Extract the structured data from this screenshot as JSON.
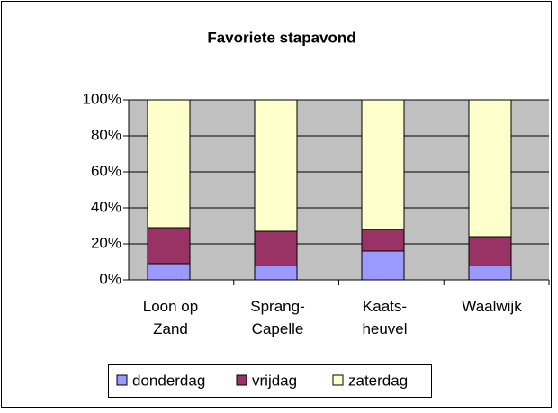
{
  "chart_data": {
    "type": "stacked_bar_percent",
    "title": "Favoriete stapavond",
    "categories": [
      "Loon op Zand",
      "Sprang-Capelle",
      "Kaats-heuvel",
      "Waalwijk"
    ],
    "series": [
      {
        "name": "donderdag",
        "color": "#9999ff",
        "values": [
          9,
          8,
          16,
          8
        ]
      },
      {
        "name": "vrijdag",
        "color": "#993366",
        "values": [
          20,
          19,
          12,
          16
        ]
      },
      {
        "name": "zaterdag",
        "color": "#ffffcc",
        "values": [
          71,
          73,
          72,
          76
        ]
      }
    ],
    "ylim": [
      0,
      100
    ],
    "yticks": [
      {
        "value": 0,
        "label": "0%"
      },
      {
        "value": 20,
        "label": "20%"
      },
      {
        "value": 40,
        "label": "40%"
      },
      {
        "value": 60,
        "label": "60%"
      },
      {
        "value": 80,
        "label": "80%"
      },
      {
        "value": 100,
        "label": "100%"
      }
    ],
    "grid": true,
    "legend": "bottom"
  }
}
